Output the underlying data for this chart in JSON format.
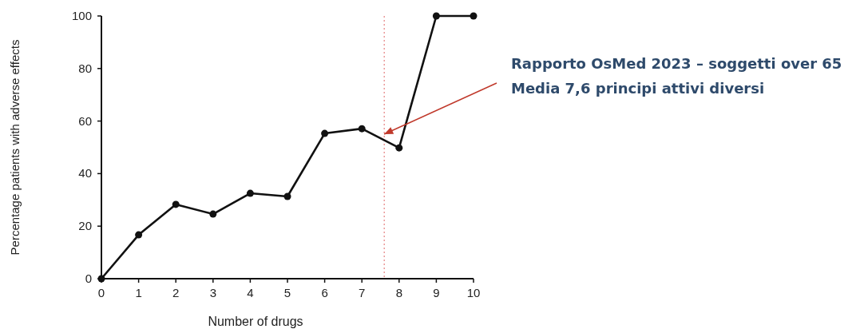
{
  "chart_data": {
    "type": "line",
    "xlabel": "Number of drugs",
    "ylabel": "Percentage patients with adverse effects",
    "x": [
      0,
      1,
      2,
      3,
      4,
      5,
      6,
      7,
      8,
      9,
      10
    ],
    "series": [
      {
        "color": "#111111",
        "values": [
          0,
          16.7,
          28.3,
          24.6,
          32.5,
          31.3,
          55.3,
          57.1,
          49.8,
          100,
          100
        ]
      }
    ],
    "xlim": [
      0,
      10
    ],
    "xticks": [
      0,
      1,
      2,
      3,
      4,
      5,
      6,
      7,
      8,
      9,
      10
    ],
    "ylim": [
      0,
      100
    ],
    "yticks": [
      0,
      20,
      40,
      60,
      80,
      100
    ],
    "marker": "circle",
    "line_style": "solid",
    "ref_lines": [
      {
        "axis": "x",
        "value": 7.6,
        "color": "#e06666",
        "line_style": "dotted"
      }
    ],
    "annotations": [
      "Rapporto OsMed 2023 – soggetti over 65",
      {
        "text": "Media 7,6 principi attivi diversi",
        "x": 7.6,
        "y": 55
      }
    ]
  }
}
